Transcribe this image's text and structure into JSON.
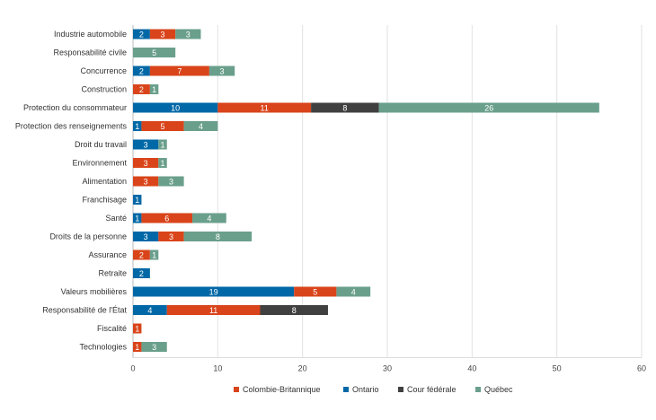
{
  "chart_data": {
    "type": "bar",
    "orientation": "horizontal",
    "stacked": true,
    "categories": [
      "Industrie automobile",
      "Responsabilité civile",
      "Concurrence",
      "Construction",
      "Protection du consommateur",
      "Protection des renseignements",
      "Droit du travail",
      "Environnement",
      "Alimentation",
      "Franchisage",
      "Santé",
      "Droits de la personne",
      "Assurance",
      "Retraite",
      "Valeurs mobilières",
      "Responsabilité de l'État",
      "Fiscalité",
      "Technologies"
    ],
    "series": [
      {
        "name": "Ontario",
        "color": "#0068a6",
        "values": [
          2,
          0,
          2,
          0,
          10,
          1,
          3,
          0,
          0,
          1,
          1,
          3,
          0,
          2,
          19,
          4,
          0,
          0
        ]
      },
      {
        "name": "Colombie-Britannique",
        "color": "#d9441a",
        "values": [
          3,
          0,
          7,
          2,
          11,
          5,
          0,
          3,
          3,
          0,
          6,
          3,
          2,
          0,
          5,
          11,
          1,
          1
        ]
      },
      {
        "name": "Cour fédérale",
        "color": "#404040",
        "values": [
          0,
          0,
          0,
          0,
          8,
          0,
          0,
          0,
          0,
          0,
          0,
          0,
          0,
          0,
          0,
          8,
          0,
          0
        ]
      },
      {
        "name": "Québec",
        "color": "#6a9f8c",
        "values": [
          3,
          5,
          3,
          1,
          26,
          4,
          1,
          1,
          3,
          0,
          4,
          8,
          1,
          0,
          4,
          0,
          0,
          3
        ]
      }
    ],
    "legend_order": [
      "Colombie-Britannique",
      "Ontario",
      "Cour fédérale",
      "Québec"
    ],
    "legend_position": "bottom",
    "xlim": [
      0,
      60
    ],
    "xticks": [
      "0",
      "10",
      "20",
      "30",
      "40",
      "50",
      "60"
    ],
    "grid": true,
    "data_labels": true
  }
}
